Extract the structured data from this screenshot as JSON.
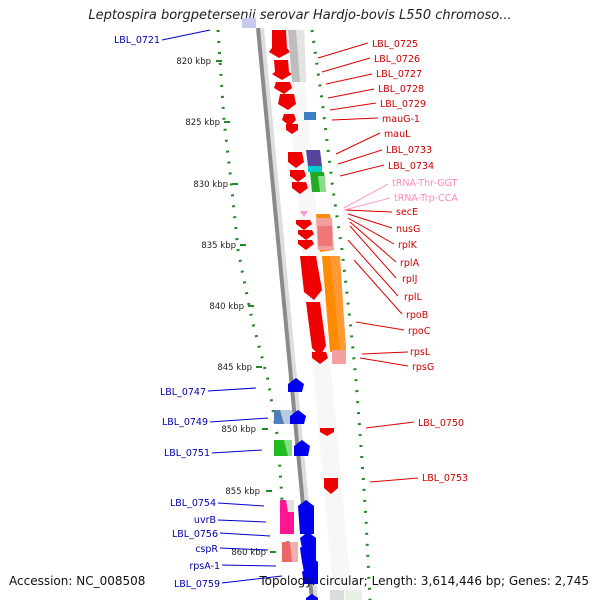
{
  "title": "Leptospira borgpetersenii serovar Hardjo-bovis L550 chromoso...",
  "accession": "Accession: NC_008508",
  "summary": "Topology: circular; Length: 3,614,446 bp; Genes: 2,745",
  "ticks": [
    "820 kbp",
    "825 kbp",
    "830 kbp",
    "835 kbp",
    "840 kbp",
    "845 kbp",
    "850 kbp",
    "855 kbp",
    "860 kbp"
  ],
  "left_labels": [
    "LBL_0721",
    "LBL_0747",
    "LBL_0749",
    "LBL_0751",
    "LBL_0754",
    "uvrB",
    "LBL_0756",
    "cspR",
    "rpsA-1",
    "LBL_0759"
  ],
  "right_labels": [
    "LBL_0725",
    "LBL_0726",
    "LBL_0727",
    "LBL_0728",
    "LBL_0729",
    "mauG-1",
    "mauL",
    "LBL_0733",
    "LBL_0734",
    "tRNA-Thr-GGT",
    "tRNA-Trp-CCA",
    "secE",
    "nusG",
    "rplK",
    "rplA",
    "rplJ",
    "rplL",
    "rpoB",
    "rpoC",
    "rpsL",
    "rpsG",
    "LBL_0750",
    "LBL_0753"
  ],
  "colors": {
    "forward_gene": "#0000ee",
    "reverse_gene": "#ee0000",
    "trna": "#ff99cc",
    "gc_skew_dots": "#228822",
    "backbone": "#888888"
  }
}
